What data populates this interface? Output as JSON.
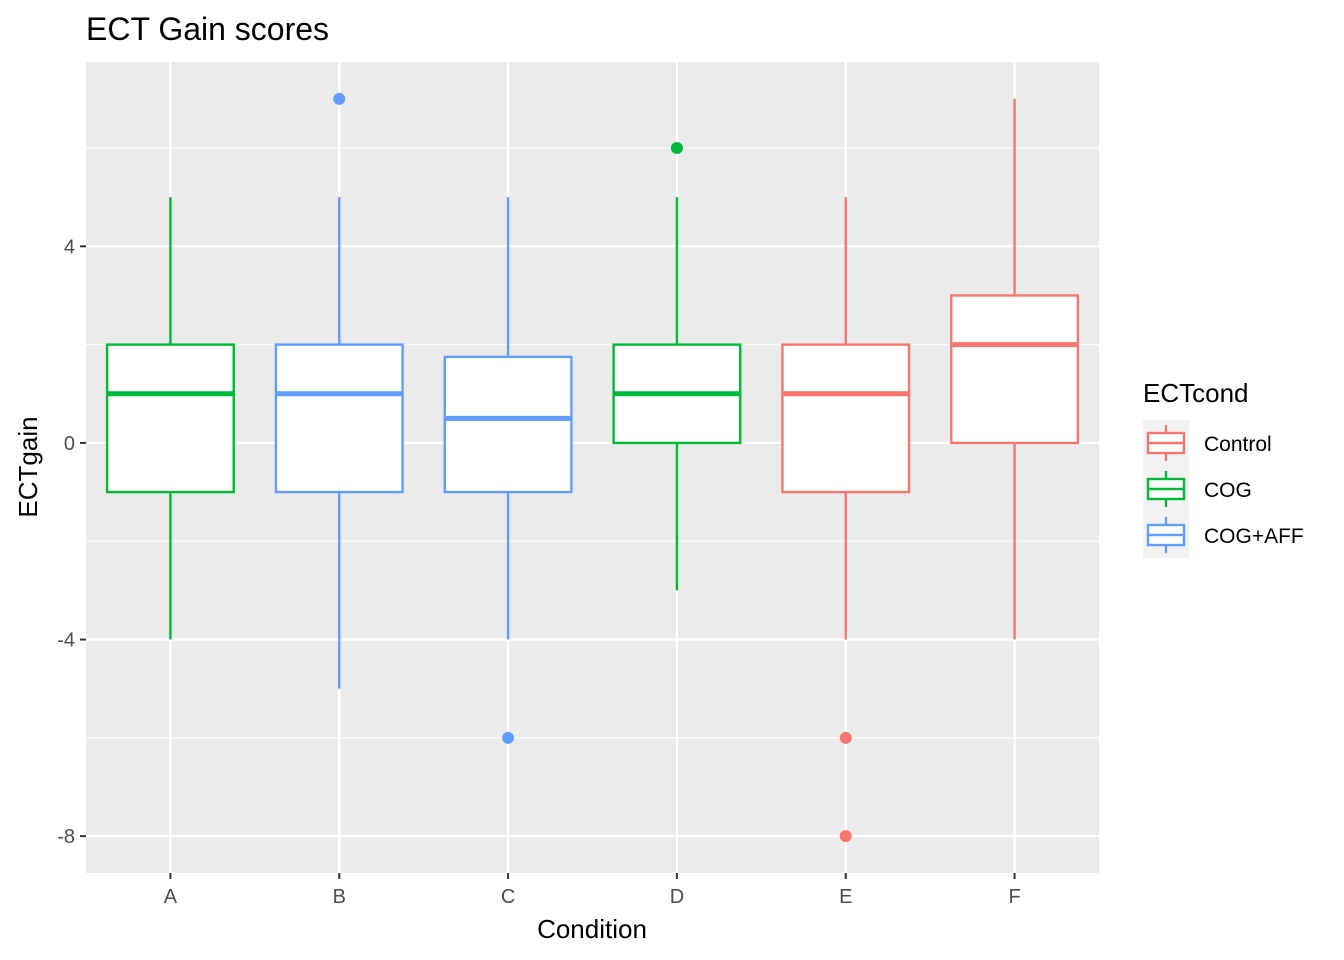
{
  "chart_data": {
    "type": "box",
    "title": "ECT Gain scores",
    "xlabel": "Condition",
    "ylabel": "ECTgain",
    "categories": [
      "A",
      "B",
      "C",
      "D",
      "E",
      "F"
    ],
    "yticks": [
      -8,
      -4,
      0,
      4
    ],
    "ylim": [
      -8.75,
      7.75
    ],
    "grid": true,
    "legend": {
      "title": "ECTcond",
      "position": "right",
      "entries": [
        {
          "name": "Control",
          "color": "#F8766D"
        },
        {
          "name": "COG",
          "color": "#00BA38"
        },
        {
          "name": "COG+AFF",
          "color": "#619CFF"
        }
      ]
    },
    "boxes": [
      {
        "category": "A",
        "group": "COG",
        "min": -4,
        "q1": -1,
        "median": 1,
        "q3": 2,
        "max": 5,
        "outliers": []
      },
      {
        "category": "B",
        "group": "COG+AFF",
        "min": -5,
        "q1": -1,
        "median": 1,
        "q3": 2,
        "max": 5,
        "outliers": [
          7
        ]
      },
      {
        "category": "C",
        "group": "COG+AFF",
        "min": -4,
        "q1": -1,
        "median": 0.5,
        "q3": 1.75,
        "max": 5,
        "outliers": [
          -6
        ]
      },
      {
        "category": "D",
        "group": "COG",
        "min": -3,
        "q1": 0,
        "median": 1,
        "q3": 2,
        "max": 5,
        "outliers": [
          6
        ]
      },
      {
        "category": "E",
        "group": "Control",
        "min": -4,
        "q1": -1,
        "median": 1,
        "q3": 2,
        "max": 5,
        "outliers": [
          -6,
          -8
        ]
      },
      {
        "category": "F",
        "group": "Control",
        "min": -4,
        "q1": 0,
        "median": 2,
        "q3": 3,
        "max": 7,
        "outliers": []
      }
    ]
  }
}
